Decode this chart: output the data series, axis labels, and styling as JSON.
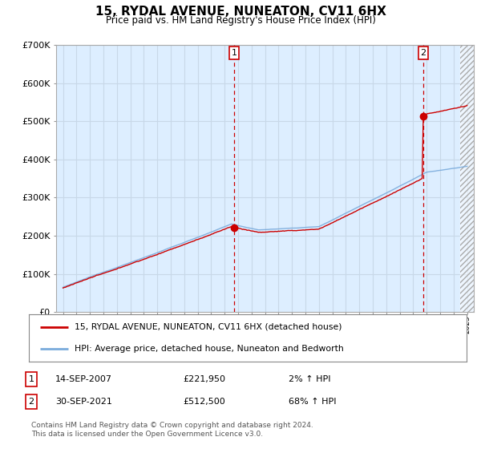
{
  "title": "15, RYDAL AVENUE, NUNEATON, CV11 6HX",
  "subtitle": "Price paid vs. HM Land Registry's House Price Index (HPI)",
  "ylim": [
    0,
    700000
  ],
  "xlim_start": 1994.5,
  "xlim_end": 2025.5,
  "hpi_color": "#7aabdc",
  "price_color": "#cc0000",
  "bg_fill_color": "#ddeeff",
  "transaction1_date_x": 2007.71,
  "transaction1_price": 221950,
  "transaction2_date_x": 2021.75,
  "transaction2_price": 512500,
  "legend_line1": "15, RYDAL AVENUE, NUNEATON, CV11 6HX (detached house)",
  "legend_line2": "HPI: Average price, detached house, Nuneaton and Bedworth",
  "ann1_num": "1",
  "ann1_date": "14-SEP-2007",
  "ann1_price": "£221,950",
  "ann1_hpi": "2% ↑ HPI",
  "ann2_num": "2",
  "ann2_date": "30-SEP-2021",
  "ann2_price": "£512,500",
  "ann2_hpi": "68% ↑ HPI",
  "footer": "Contains HM Land Registry data © Crown copyright and database right 2024.\nThis data is licensed under the Open Government Licence v3.0.",
  "background_color": "#ffffff",
  "grid_color": "#c8d8e8"
}
